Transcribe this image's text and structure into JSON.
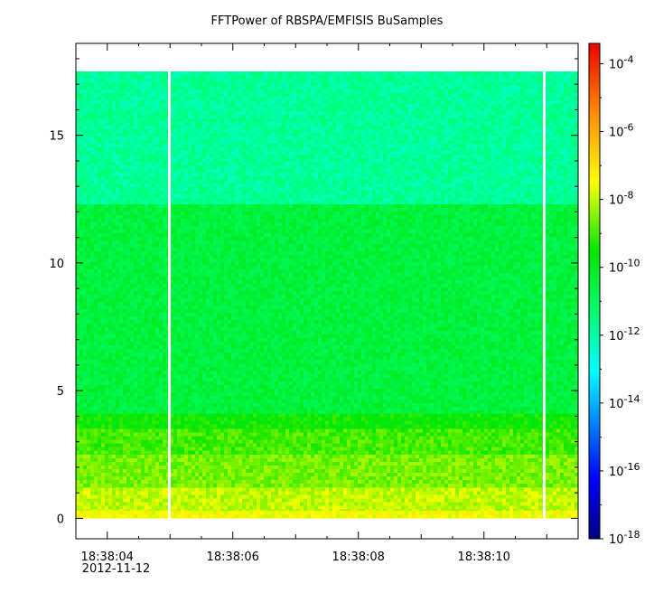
{
  "chart_data": {
    "type": "heatmap",
    "title": "FFTPower of RBSPA/EMFISIS  BuSamples",
    "xlabel": "",
    "ylabel": "",
    "x_tick_labels": [
      "18:38:04",
      "18:38:06",
      "18:38:08",
      "18:38:10"
    ],
    "x_date_label": "2012-11-12",
    "x_start_time": "18:38:03.5",
    "x_end_time": "18:38:11.5",
    "ylim": [
      -0.8,
      18.6
    ],
    "y_ticks": [
      0,
      5,
      10,
      15
    ],
    "colorbar": {
      "scale": "log",
      "range_exponents": [
        -18,
        -3.4
      ],
      "tick_base": "10",
      "tick_exponents": [
        "-4",
        "-6",
        "-8",
        "-10",
        "-12",
        "-14",
        "-16",
        "-18"
      ]
    },
    "data_gaps_time": [
      "18:38:04.99",
      "18:38:10.96"
    ],
    "bands": [
      {
        "y_range": [
          0.0,
          0.3
        ],
        "log10_power": -7.5
      },
      {
        "y_range": [
          0.3,
          1.2
        ],
        "log10_power": -8.0
      },
      {
        "y_range": [
          1.2,
          2.5
        ],
        "log10_power": -8.6
      },
      {
        "y_range": [
          2.5,
          3.5
        ],
        "log10_power": -9.0
      },
      {
        "y_range": [
          3.5,
          4.1
        ],
        "log10_power": -9.5
      },
      {
        "y_range": [
          4.1,
          12.3
        ],
        "log10_power": -10.5
      },
      {
        "y_range": [
          12.3,
          17.5
        ],
        "log10_power": -11.8
      }
    ]
  }
}
